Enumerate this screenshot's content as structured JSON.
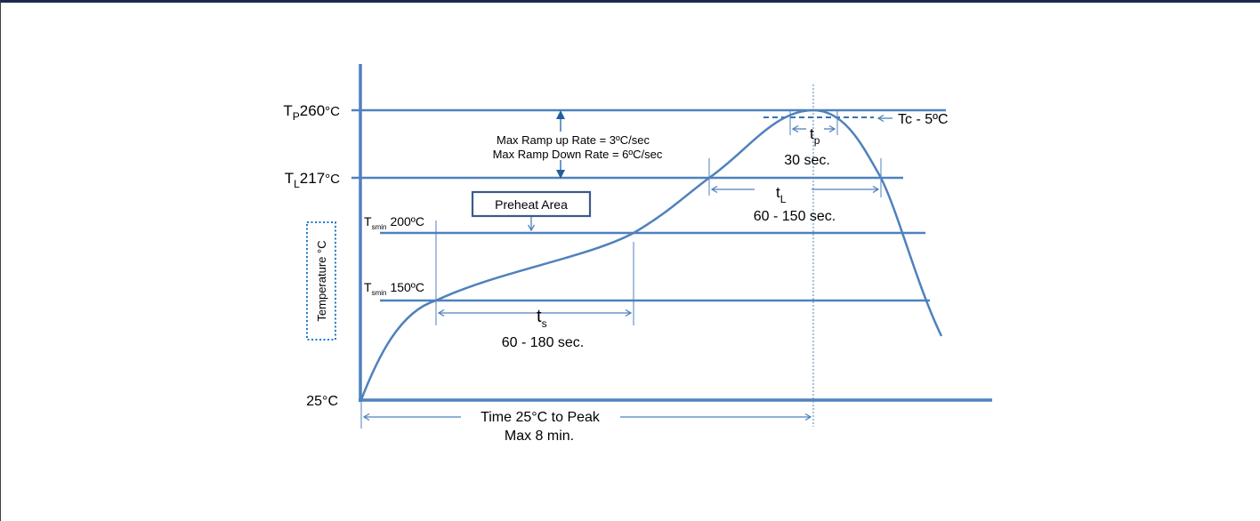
{
  "temps": {
    "tp": {
      "sym": "T",
      "sub": "P",
      "val": "260",
      "unit": "°C"
    },
    "tl": {
      "sym": "T",
      "sub": "L",
      "val": "217",
      "unit": "°C"
    },
    "tsmax": {
      "sym": "T",
      "sub": "smin",
      "val": "200ºC"
    },
    "tsmin": {
      "sym": "T",
      "sub": "smin",
      "val": "150ºC"
    },
    "ambient": "25°C"
  },
  "axis_label": "Temperature °C",
  "ramp": {
    "line1": "Max Ramp up Rate = 3ºC/sec",
    "line2": "Max Ramp Down Rate = 6ºC/sec"
  },
  "preheat_label": "Preheat Area",
  "tc_label": "Tc - 5ºC",
  "tp_time": {
    "sym": "t",
    "sub": "p",
    "duration": "30 sec."
  },
  "tl_time": {
    "sym": "t",
    "sub": "L",
    "duration": "60 - 150 sec."
  },
  "ts_time": {
    "sym": "t",
    "sub": "s",
    "duration": "60 - 180 sec."
  },
  "time_to_peak": {
    "line1": "Time 25°C to Peak",
    "line2": "Max 8 min."
  },
  "colors": {
    "line": "#4f81bd",
    "arrow": "#1f5fa0",
    "frame_top": "#1a2a4f",
    "dotted": "#1f78c8",
    "box": "#3b5a8a"
  }
}
